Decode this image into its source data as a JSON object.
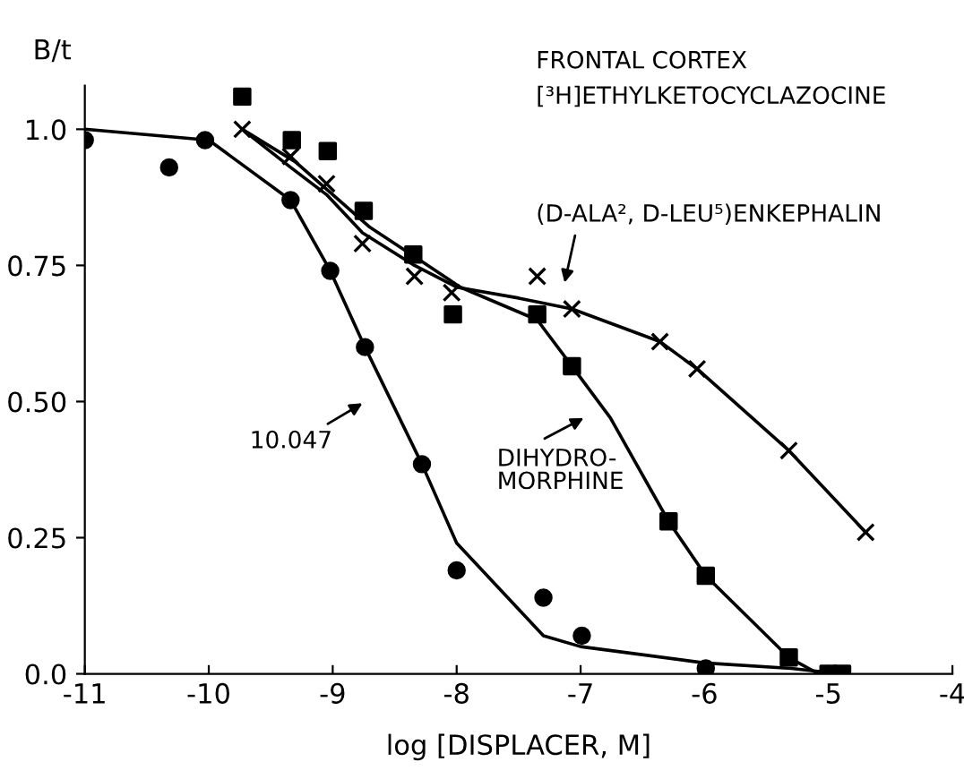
{
  "chart_data": {
    "type": "scatter",
    "title": "FRONTAL CORTEX",
    "subtitle": "[³H]ETHYLKETOCYCLAZOCINE",
    "xlabel": "log [DISPLACER, M]",
    "ylabel": "B/t",
    "xlim": [
      -11,
      -4
    ],
    "xticks": [
      -11,
      -10,
      -9,
      -8,
      -7,
      -6,
      -5,
      -4
    ],
    "ylim": [
      0,
      1.08
    ],
    "yticks": [
      {
        "value": 0,
        "label": "0.0"
      },
      0.25,
      {
        "value": 0.5,
        "label": "0.50"
      },
      0.75,
      {
        "value": 1,
        "label": "1.0"
      }
    ],
    "grid": false,
    "legend": false,
    "series": [
      {
        "marker": "circle",
        "color": "#000000",
        "x": [
          -11.0,
          -10.32,
          -10.03,
          -9.34,
          -9.02,
          -8.74,
          -8.28,
          -8.0,
          -7.3,
          -6.99,
          -5.99
        ],
        "values": [
          0.98,
          0.93,
          0.98,
          0.87,
          0.74,
          0.6,
          0.385,
          0.19,
          0.14,
          0.07,
          0.01
        ]
      },
      {
        "type": "line",
        "marker": "none",
        "color": "#000000",
        "x": [
          -11.0,
          -10.0,
          -9.34,
          -9.02,
          -8.74,
          -8.28,
          -8.0,
          -7.3,
          -7.0,
          -6.0,
          -5.3,
          -4.9
        ],
        "values": [
          1.0,
          0.98,
          0.87,
          0.74,
          0.6,
          0.385,
          0.24,
          0.07,
          0.05,
          0.02,
          0.01,
          0.0
        ]
      },
      {
        "marker": "square",
        "color": "#000000",
        "x": [
          -9.73,
          -9.33,
          -9.04,
          -8.75,
          -8.35,
          -8.03,
          -7.35,
          -7.07,
          -6.29,
          -5.99,
          -5.32,
          -5.0,
          -4.89
        ],
        "values": [
          1.06,
          0.98,
          0.96,
          0.85,
          0.77,
          0.66,
          0.66,
          0.565,
          0.28,
          0.18,
          0.03,
          0.0,
          0.0
        ]
      },
      {
        "type": "line",
        "marker": "none",
        "color": "#000000",
        "x": [
          -9.73,
          -9.3,
          -9.0,
          -8.7,
          -8.3,
          -7.97,
          -7.35,
          -7.07,
          -6.76,
          -6.29,
          -5.99,
          -5.32,
          -5.08,
          -4.84
        ],
        "values": [
          1.0,
          0.94,
          0.88,
          0.82,
          0.76,
          0.71,
          0.65,
          0.565,
          0.47,
          0.28,
          0.18,
          0.03,
          0.0,
          0.0
        ]
      },
      {
        "marker": "cross",
        "color": "#000000",
        "x": [
          -9.73,
          -9.34,
          -9.05,
          -8.76,
          -8.34,
          -8.04,
          -7.35,
          -7.07,
          -6.36,
          -6.06,
          -5.32,
          -4.7
        ],
        "values": [
          1.0,
          0.95,
          0.9,
          0.79,
          0.73,
          0.7,
          0.73,
          0.67,
          0.61,
          0.56,
          0.41,
          0.26
        ]
      },
      {
        "type": "line",
        "marker": "none",
        "color": "#000000",
        "x": [
          -9.73,
          -9.34,
          -9.05,
          -8.76,
          -8.34,
          -8.0,
          -7.5,
          -7.07,
          -6.36,
          -6.06,
          -5.32,
          -4.7
        ],
        "values": [
          1.0,
          0.93,
          0.88,
          0.81,
          0.75,
          0.71,
          0.69,
          0.67,
          0.61,
          0.56,
          0.41,
          0.26
        ]
      }
    ],
    "annotations": [
      "10.047",
      "DIHYDRO-\nMORPHINE",
      "(D-ALA², D-LEU⁵)ENKEPHALIN"
    ]
  }
}
